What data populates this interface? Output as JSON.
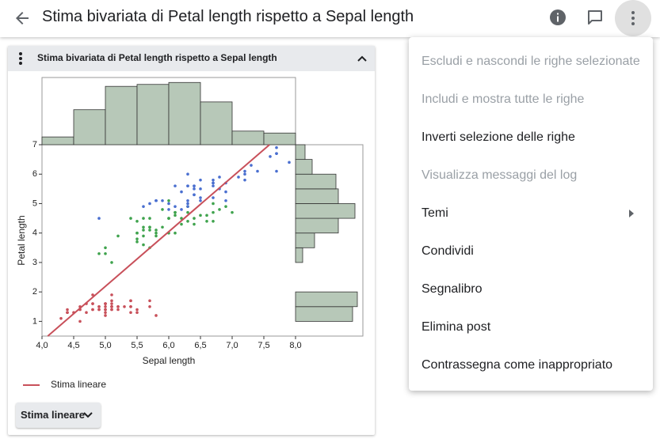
{
  "header": {
    "title": "Stima bivariata di Petal length rispetto a Sepal length"
  },
  "card": {
    "title": "Stima bivariata di Petal length rispetto a Sepal length",
    "button_label": "Stima lineare"
  },
  "chart_data": {
    "type": "scatter",
    "xlabel": "Sepal length",
    "ylabel": "Petal length",
    "xlim": [
      4,
      8
    ],
    "ylim": [
      0.5,
      7
    ],
    "xticks": [
      {
        "value": 4,
        "label": "4,0"
      },
      {
        "value": 4.5,
        "label": "4,5"
      },
      {
        "value": 5,
        "label": "5,0"
      },
      {
        "value": 5.5,
        "label": "5,5"
      },
      {
        "value": 6,
        "label": "6,0"
      },
      {
        "value": 6.5,
        "label": "6,5"
      },
      {
        "value": 7,
        "label": "7,0"
      },
      {
        "value": 7.5,
        "label": "7,5"
      },
      {
        "value": 8,
        "label": "8,0"
      }
    ],
    "yticks": [
      1,
      2,
      3,
      4,
      5,
      6,
      7
    ],
    "series": [
      {
        "color": "#c8505a",
        "x": [
          5.1,
          4.9,
          4.7,
          4.6,
          5.0,
          5.4,
          4.6,
          5.0,
          4.4,
          4.9,
          5.4,
          4.8,
          4.8,
          4.3,
          5.8,
          5.7,
          5.4,
          5.1,
          5.7,
          5.1,
          5.4,
          5.1,
          4.6,
          5.1,
          4.8,
          5.0,
          5.0,
          5.2,
          5.2,
          4.7,
          4.8,
          5.4,
          5.2,
          5.5,
          4.9,
          5.0,
          5.5,
          4.9,
          4.4,
          5.1,
          5.0,
          4.5,
          4.4,
          5.0,
          5.1,
          4.8,
          5.1,
          4.6,
          5.3,
          5.0
        ],
        "values": [
          1.4,
          1.4,
          1.3,
          1.5,
          1.4,
          1.7,
          1.4,
          1.5,
          1.4,
          1.5,
          1.5,
          1.6,
          1.4,
          1.1,
          1.2,
          1.5,
          1.3,
          1.4,
          1.7,
          1.5,
          1.7,
          1.5,
          1.0,
          1.7,
          1.9,
          1.6,
          1.6,
          1.5,
          1.4,
          1.6,
          1.6,
          1.5,
          1.5,
          1.4,
          1.5,
          1.2,
          1.3,
          1.4,
          1.3,
          1.5,
          1.3,
          1.3,
          1.3,
          1.6,
          1.9,
          1.4,
          1.6,
          1.4,
          1.5,
          1.4
        ]
      },
      {
        "color": "#3fa34d",
        "x": [
          7.0,
          6.4,
          6.9,
          5.5,
          6.5,
          5.7,
          6.3,
          4.9,
          6.6,
          5.2,
          5.0,
          5.9,
          6.0,
          6.1,
          5.6,
          6.7,
          5.6,
          5.8,
          6.2,
          5.6,
          5.9,
          6.1,
          6.3,
          6.1,
          6.4,
          6.6,
          6.8,
          6.7,
          6.0,
          5.7,
          5.5,
          5.5,
          5.8,
          6.0,
          5.4,
          6.0,
          6.7,
          6.3,
          5.6,
          5.5,
          5.5,
          6.1,
          5.8,
          5.0,
          5.6,
          5.7,
          5.7,
          6.2,
          5.1,
          5.7
        ],
        "values": [
          4.7,
          4.5,
          4.9,
          4.0,
          4.6,
          4.5,
          4.7,
          3.3,
          4.6,
          3.9,
          3.5,
          4.2,
          4.0,
          4.7,
          3.6,
          4.4,
          4.5,
          4.1,
          4.5,
          3.9,
          4.8,
          4.0,
          4.9,
          4.7,
          4.3,
          4.4,
          4.8,
          5.0,
          4.5,
          3.5,
          3.8,
          3.7,
          3.9,
          5.1,
          4.5,
          4.5,
          4.7,
          4.4,
          4.1,
          4.0,
          4.4,
          4.6,
          4.0,
          3.3,
          4.2,
          4.2,
          4.2,
          4.3,
          3.0,
          4.1
        ]
      },
      {
        "color": "#4a6fd0",
        "x": [
          6.3,
          5.8,
          7.1,
          6.3,
          6.5,
          7.6,
          4.9,
          7.3,
          6.7,
          7.2,
          6.5,
          6.4,
          6.8,
          5.7,
          5.8,
          6.4,
          6.5,
          7.7,
          7.7,
          6.0,
          6.9,
          5.6,
          7.7,
          6.3,
          6.7,
          7.2,
          6.2,
          6.1,
          6.4,
          7.2,
          7.4,
          7.9,
          6.4,
          6.3,
          6.1,
          7.7,
          6.3,
          6.4,
          6.0,
          6.9,
          6.7,
          6.9,
          5.8,
          6.8,
          6.7,
          6.7,
          6.3,
          6.5,
          6.2,
          5.9
        ],
        "values": [
          6.0,
          5.1,
          5.9,
          5.6,
          5.8,
          6.6,
          4.5,
          6.3,
          5.8,
          6.1,
          5.1,
          5.3,
          5.5,
          5.0,
          5.1,
          5.3,
          5.5,
          6.7,
          6.9,
          5.0,
          5.7,
          4.9,
          6.7,
          4.9,
          5.7,
          6.0,
          4.8,
          4.9,
          5.6,
          5.8,
          6.1,
          6.4,
          5.6,
          5.1,
          5.6,
          6.1,
          5.6,
          5.5,
          4.8,
          5.4,
          5.6,
          5.1,
          5.1,
          5.9,
          5.7,
          5.2,
          5.0,
          5.2,
          5.4,
          5.1
        ]
      }
    ],
    "fit": {
      "name": "Stima lineare",
      "slope": 1.858,
      "intercept": -7.101,
      "color": "#c8505a"
    },
    "x_histogram": {
      "bins": [
        4,
        4.5,
        5,
        5.5,
        6,
        6.5,
        7,
        7.5,
        8
      ],
      "counts": [
        4,
        18,
        30,
        31,
        32,
        22,
        7,
        6
      ],
      "color": "#b7c8b8"
    },
    "y_histogram": {
      "bins": [
        1,
        1.5,
        2,
        2.5,
        3,
        3.5,
        4,
        4.5,
        5,
        5.5,
        6,
        6.5,
        7
      ],
      "counts": [
        24,
        26,
        0,
        0,
        3,
        8,
        18,
        25,
        18,
        17,
        7,
        4
      ],
      "color": "#b7c8b8"
    }
  },
  "menu": {
    "items": [
      {
        "label": "Escludi e nascondi le righe selezionate",
        "disabled": true
      },
      {
        "label": "Includi e mostra tutte le righe",
        "disabled": true
      },
      {
        "label": "Inverti selezione delle righe",
        "disabled": false
      },
      {
        "label": "Visualizza messaggi del log",
        "disabled": true
      },
      {
        "label": "Temi",
        "disabled": false,
        "submenu": true
      },
      {
        "label": "Condividi",
        "disabled": false
      },
      {
        "label": "Segnalibro",
        "disabled": false
      },
      {
        "label": "Elimina post",
        "disabled": false
      },
      {
        "label": "Contrassegna come inappropriato",
        "disabled": false
      }
    ]
  }
}
